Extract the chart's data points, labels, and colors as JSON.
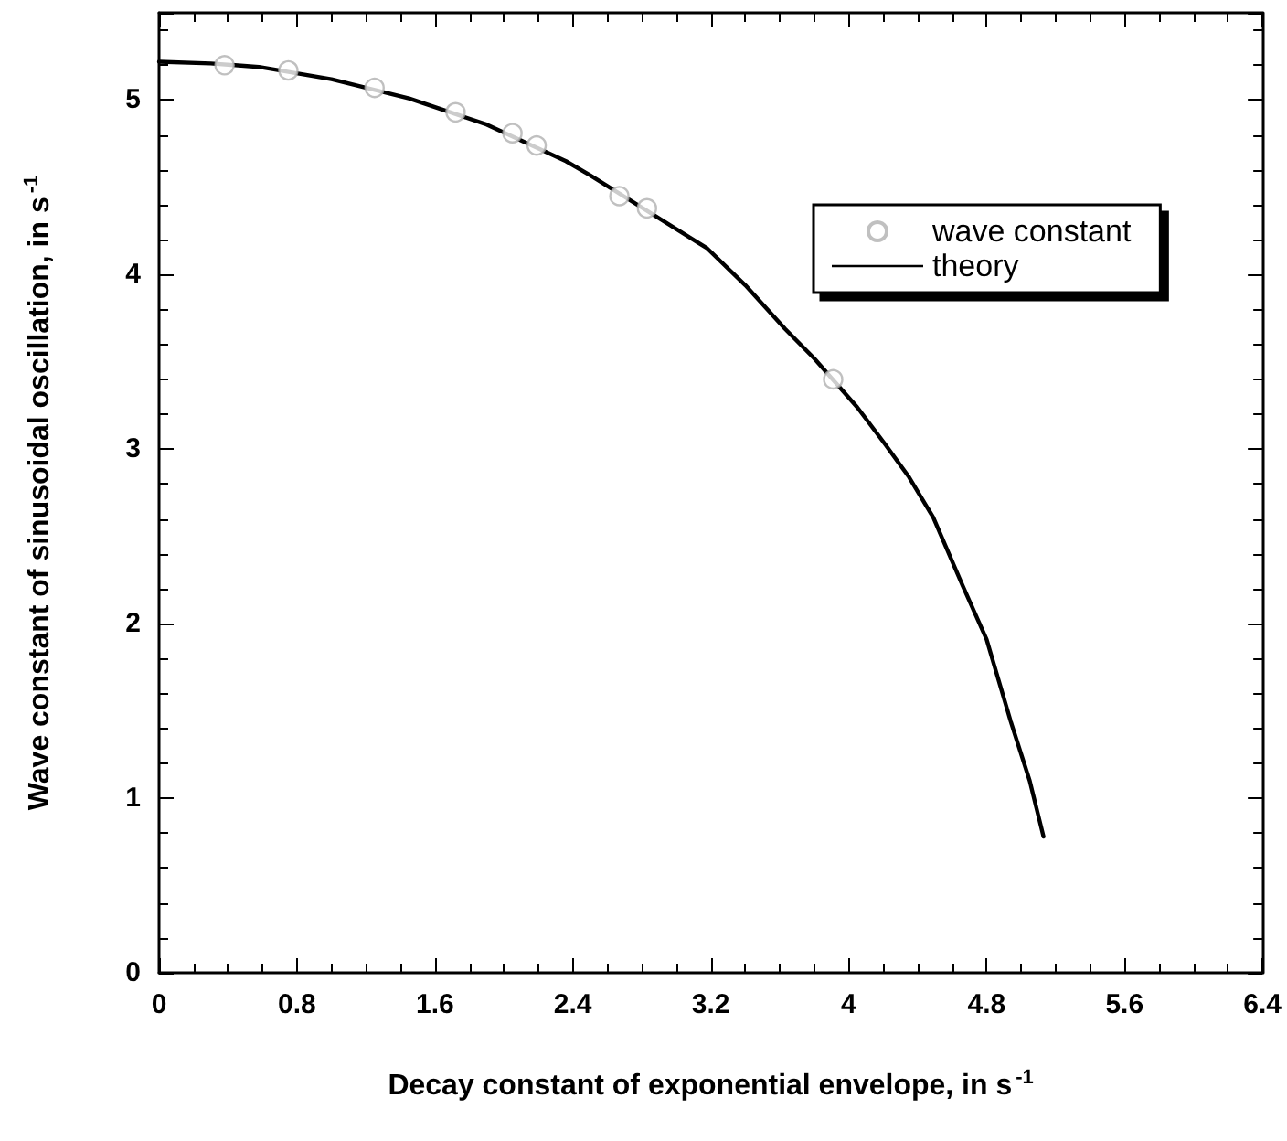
{
  "chart_data": {
    "type": "scatter",
    "xlabel": "Decay constant of exponential envelope, in s$^{-1}$",
    "ylabel": "Wave constant of sinusoidal oscillation, in s$^{-1}$",
    "xlim": [
      0,
      6.4
    ],
    "xticks": [
      0,
      0.8,
      1.6,
      2.4,
      3.2,
      4,
      4.8,
      5.6,
      6.4
    ],
    "ylim": [
      0,
      5.5
    ],
    "yticks": [
      0,
      1,
      2,
      3,
      4,
      5
    ],
    "grid": false,
    "legend": "top right",
    "series": [
      {
        "name": "wave constant",
        "marker": "circle",
        "color": "#b0b0b0",
        "x": [
          0.38,
          0.75,
          1.25,
          1.72,
          2.05,
          2.19,
          2.67,
          2.83,
          3.91
        ],
        "values": [
          5.2,
          5.17,
          5.07,
          4.93,
          4.81,
          4.74,
          4.45,
          4.38,
          3.4
        ]
      },
      {
        "name": "theory",
        "type": "line",
        "marker": "none",
        "line_style": "solid",
        "color": "#000000",
        "x": [
          0,
          0.3,
          0.58,
          1.0,
          1.45,
          1.9,
          2.36,
          2.5,
          3.18,
          3.4,
          3.63,
          3.8,
          4.05,
          4.21,
          4.35,
          4.49,
          4.66,
          4.8,
          4.94,
          5.05,
          5.13
        ],
        "values": [
          5.22,
          5.21,
          5.19,
          5.12,
          5.01,
          4.86,
          4.65,
          4.57,
          4.15,
          3.94,
          3.69,
          3.52,
          3.24,
          3.03,
          2.84,
          2.61,
          2.22,
          1.91,
          1.44,
          1.1,
          0.78
        ]
      }
    ]
  }
}
